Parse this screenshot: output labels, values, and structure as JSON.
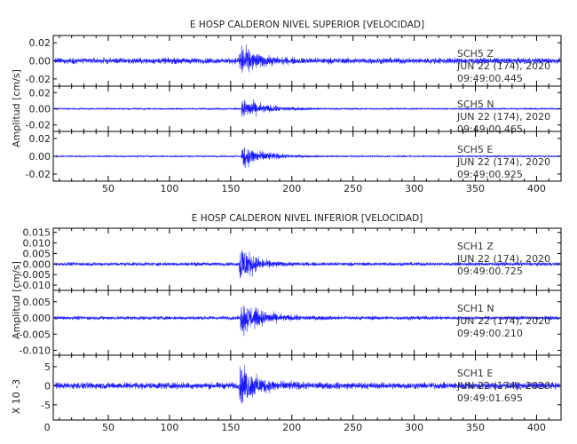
{
  "colors": {
    "trace": "#1a1aff",
    "axis": "#000000",
    "text": "#222222"
  },
  "chart_data": [
    {
      "type": "line",
      "title": "E HOSP CALDERON NIVEL SUPERIOR [VELOCIDAD]",
      "ylabel": "Amplitud [cm/s]",
      "xlim": [
        5,
        420
      ],
      "x_ticks": [
        "50",
        "100",
        "150",
        "200",
        "250",
        "300",
        "350",
        "400"
      ],
      "traces": [
        {
          "station": "SCH5",
          "component": "Z",
          "date": "JUN 22 (174), 2020",
          "time": "09:49:00.445",
          "ylim": [
            -0.028,
            0.028
          ],
          "y_ticks": [
            "0.02",
            "0.00",
            "-0.02"
          ],
          "noise_amplitude": 0.0045,
          "event_onset_x": 157,
          "event_peak": 0.026,
          "event_decay": 12
        },
        {
          "station": "SCH5",
          "component": "N",
          "date": "JUN 22 (174), 2020",
          "time": "09:49:00.465",
          "ylim": [
            -0.028,
            0.028
          ],
          "y_ticks": [
            "0.02",
            "0.00",
            "-0.02"
          ],
          "noise_amplitude": 0.0015,
          "event_onset_x": 159,
          "event_peak": 0.018,
          "event_decay": 18
        },
        {
          "station": "SCH5",
          "component": "E",
          "date": "JUN 22 (174), 2020",
          "time": "09:49:00.925",
          "ylim": [
            -0.028,
            0.028
          ],
          "y_ticks": [
            "0.02",
            "0.00",
            "-0.02"
          ],
          "noise_amplitude": 0.0012,
          "event_onset_x": 159,
          "event_peak": 0.02,
          "event_decay": 16
        }
      ]
    },
    {
      "type": "line",
      "title": "E HOSP CALDERON NIVEL INFERIOR [VELOCIDAD]",
      "ylabel": "Amplitud [cm/s]",
      "xlim": [
        5,
        420
      ],
      "x_ticks": [
        "0",
        "50",
        "100",
        "150",
        "200",
        "250",
        "300",
        "350",
        "400"
      ],
      "traces": [
        {
          "station": "SCH1",
          "component": "Z",
          "date": "JUN 22 (174), 2020",
          "time": "09:49:00.725",
          "ylim": [
            -0.0125,
            0.017
          ],
          "y_ticks": [
            "0.015",
            "0.010",
            "0.005",
            "0.000",
            "-0.005",
            "-0.010"
          ],
          "noise_amplitude": 0.0012,
          "event_onset_x": 157,
          "event_peak": 0.016,
          "event_decay": 10
        },
        {
          "station": "SCH1",
          "component": "N",
          "date": "JUN 22 (174), 2020",
          "time": "09:49:00.210",
          "ylim": [
            -0.0115,
            0.0085
          ],
          "y_ticks": [
            "0.005",
            "0.000",
            "-0.005",
            "-0.010"
          ],
          "noise_amplitude": 0.0008,
          "event_onset_x": 158,
          "event_peak": 0.0075,
          "event_decay": 16
        },
        {
          "station": "SCH1",
          "component": "E",
          "date": "JUN 22 (174), 2020",
          "time": "09:49:01.695",
          "ylim": [
            -9,
            8
          ],
          "y_ticks": [
            "5",
            "0",
            "-5"
          ],
          "y_unit_label": "X 10 -3",
          "noise_amplitude": 1.2,
          "event_onset_x": 157,
          "event_peak": 7,
          "event_decay": 14
        }
      ]
    }
  ]
}
